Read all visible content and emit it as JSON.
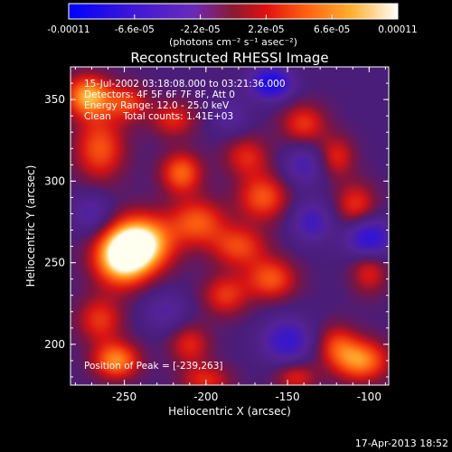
{
  "colorbar": {
    "tick_labels": [
      "-0.00011",
      "-6.6e-05",
      "-2.2e-05",
      "2.2e-05",
      "6.6e-05",
      "0.00011"
    ],
    "tick_values": [
      -0.00011,
      -6.6e-05,
      -2.2e-05,
      2.2e-05,
      6.6e-05,
      0.00011
    ],
    "range": [
      -0.00011,
      0.00011
    ],
    "unit_label": "(photons cm⁻² s⁻¹ asec⁻²)"
  },
  "chart_data": {
    "type": "heatmap",
    "title": "Reconstructed RHESSI Image",
    "xlabel": "Heliocentric X (arcsec)",
    "ylabel": "Heliocentric Y (arcsec)",
    "xlim": [
      -283,
      -88
    ],
    "ylim": [
      175,
      370
    ],
    "x_ticks": [
      -250,
      -200,
      -150,
      -100
    ],
    "y_ticks": [
      200,
      250,
      300,
      350
    ],
    "info_lines": [
      "15-Jul-2002 03:18:08.000 to 03:21:36.000",
      "Detectors: 4F 5F 6F 7F 8F, Att 0",
      "Energy Range: 12.0 - 25.0 keV",
      "Clean    Total counts: 1.41E+03"
    ],
    "peak_label": "Position of Peak = [-239,263]",
    "peak": [
      -239,
      263
    ],
    "blobs": [
      {
        "x": -240,
        "y": 262,
        "sx": 14,
        "sy": 12,
        "v": 1.0
      },
      {
        "x": -252,
        "y": 252,
        "sx": 12,
        "sy": 12,
        "v": 0.85
      },
      {
        "x": -265,
        "y": 320,
        "sx": 11,
        "sy": 14,
        "v": 0.55
      },
      {
        "x": -272,
        "y": 352,
        "sx": 10,
        "sy": 9,
        "v": 0.8
      },
      {
        "x": -248,
        "y": 348,
        "sx": 9,
        "sy": 8,
        "v": 0.45
      },
      {
        "x": -220,
        "y": 338,
        "sx": 10,
        "sy": 8,
        "v": 0.4
      },
      {
        "x": -215,
        "y": 305,
        "sx": 9,
        "sy": 9,
        "v": 0.6
      },
      {
        "x": -205,
        "y": 275,
        "sx": 12,
        "sy": 10,
        "v": 0.55
      },
      {
        "x": -180,
        "y": 260,
        "sx": 12,
        "sy": 9,
        "v": 0.5
      },
      {
        "x": -160,
        "y": 240,
        "sx": 11,
        "sy": 9,
        "v": 0.55
      },
      {
        "x": -165,
        "y": 290,
        "sx": 11,
        "sy": 10,
        "v": 0.55
      },
      {
        "x": -175,
        "y": 315,
        "sx": 10,
        "sy": 9,
        "v": 0.4
      },
      {
        "x": -140,
        "y": 335,
        "sx": 10,
        "sy": 9,
        "v": 0.45
      },
      {
        "x": -120,
        "y": 315,
        "sx": 8,
        "sy": 9,
        "v": 0.4
      },
      {
        "x": -108,
        "y": 285,
        "sx": 9,
        "sy": 10,
        "v": 0.45
      },
      {
        "x": -100,
        "y": 245,
        "sx": 8,
        "sy": 10,
        "v": 0.4
      },
      {
        "x": -120,
        "y": 200,
        "sx": 9,
        "sy": 9,
        "v": 0.4
      },
      {
        "x": -105,
        "y": 190,
        "sx": 12,
        "sy": 9,
        "v": 0.7
      },
      {
        "x": -145,
        "y": 180,
        "sx": 9,
        "sy": 7,
        "v": 0.4
      },
      {
        "x": -188,
        "y": 230,
        "sx": 10,
        "sy": 9,
        "v": 0.45
      },
      {
        "x": -210,
        "y": 200,
        "sx": 9,
        "sy": 9,
        "v": 0.4
      },
      {
        "x": -265,
        "y": 215,
        "sx": 10,
        "sy": 10,
        "v": 0.45
      },
      {
        "x": -255,
        "y": 190,
        "sx": 10,
        "sy": 8,
        "v": 0.7
      },
      {
        "x": -200,
        "y": 178,
        "sx": 11,
        "sy": 7,
        "v": 0.4
      },
      {
        "x": -160,
        "y": 360,
        "sx": 9,
        "sy": 7,
        "v": -0.8
      },
      {
        "x": -150,
        "y": 202,
        "sx": 11,
        "sy": 10,
        "v": -0.55
      },
      {
        "x": -100,
        "y": 265,
        "sx": 10,
        "sy": 9,
        "v": -0.7
      },
      {
        "x": -135,
        "y": 275,
        "sx": 9,
        "sy": 9,
        "v": -0.45
      },
      {
        "x": -140,
        "y": 310,
        "sx": 9,
        "sy": 9,
        "v": -0.4
      },
      {
        "x": -270,
        "y": 280,
        "sx": 9,
        "sy": 9,
        "v": -0.35
      },
      {
        "x": -225,
        "y": 220,
        "sx": 10,
        "sy": 9,
        "v": -0.3
      },
      {
        "x": -185,
        "y": 340,
        "sx": 8,
        "sy": 8,
        "v": -0.3
      }
    ]
  },
  "footer": {
    "timestamp": "17-Apr-2013 18:52"
  }
}
